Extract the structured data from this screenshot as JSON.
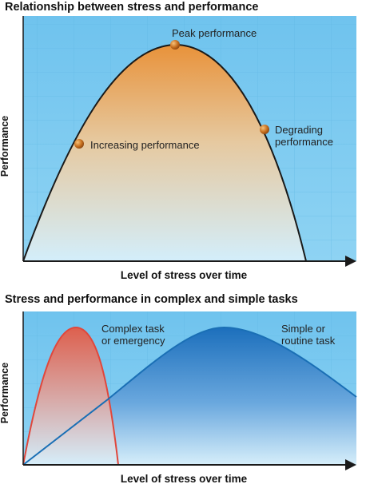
{
  "top_chart": {
    "title": "Relationship between stress and performance",
    "ylabel": "Performance",
    "xlabel": "Level of stress over time",
    "points": [
      {
        "label_lines": [
          "Peak performance"
        ]
      },
      {
        "label_lines": [
          "Increasing performance"
        ]
      },
      {
        "label_lines": [
          "Degrading",
          "performance"
        ]
      }
    ]
  },
  "bottom_chart": {
    "title": "Stress and performance in complex and simple tasks",
    "ylabel": "Performance",
    "xlabel": "Level of stress over time",
    "series": [
      {
        "label_lines": [
          "Complex task",
          "or emergency"
        ],
        "color": "#e0473c"
      },
      {
        "label_lines": [
          "Simple or",
          "routine task"
        ],
        "color": "#1a6fb5"
      }
    ]
  },
  "colors": {
    "panel_background": "#7ecbf0",
    "top_fill_top": "#e8963a",
    "top_fill_bottom": "#d8effa",
    "marker": "#c8701f"
  }
}
